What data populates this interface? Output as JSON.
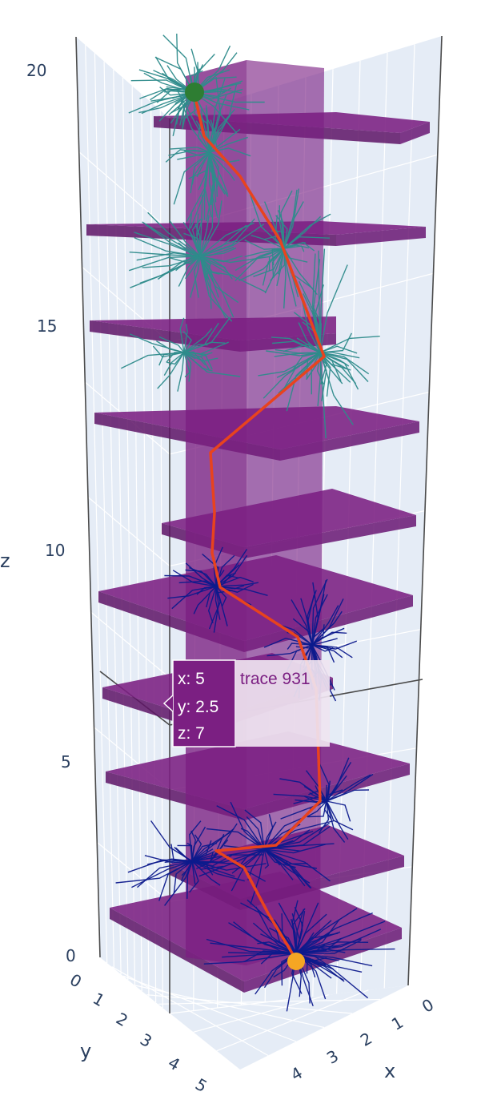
{
  "chart_data": {
    "type": "scatter3d",
    "title": "",
    "axes": {
      "x": {
        "title": "x",
        "ticks": [
          "0",
          "1",
          "2",
          "3",
          "4"
        ],
        "range": [
          0,
          5
        ]
      },
      "y": {
        "title": "y",
        "ticks": [
          "0",
          "1",
          "2",
          "3",
          "4",
          "5"
        ],
        "range": [
          0,
          5
        ]
      },
      "z": {
        "title": "z",
        "ticks": [
          "0",
          "5",
          "10",
          "15",
          "20"
        ],
        "range": [
          0,
          20
        ]
      }
    },
    "scene_background": "#e5ecf6",
    "grid": true,
    "colors": {
      "floors": "#7b1f82",
      "column": "#7b1f82",
      "upper_branches": "#2e8b8b",
      "lower_branches": "#0d1a8c",
      "path": "#e8431e",
      "goal_marker": "#2e7d32",
      "start_marker": "#f5a623"
    },
    "floor_levels_z": [
      0.6,
      2.8,
      4.8,
      6.6,
      8.6,
      10.6,
      12.6,
      15.0,
      17.0,
      18.9
    ],
    "start_point": {
      "x": 4.3,
      "y": 2.6,
      "z": 0
    },
    "goal_point": {
      "x": 2.6,
      "y": 0.6,
      "z": 19.6
    },
    "hover": {
      "trace": "trace 931",
      "x_label": "x: 5",
      "y_label": "y: 2.5",
      "z_label": "z: 7",
      "point": {
        "x": 5,
        "y": 2.5,
        "z": 7
      }
    }
  }
}
